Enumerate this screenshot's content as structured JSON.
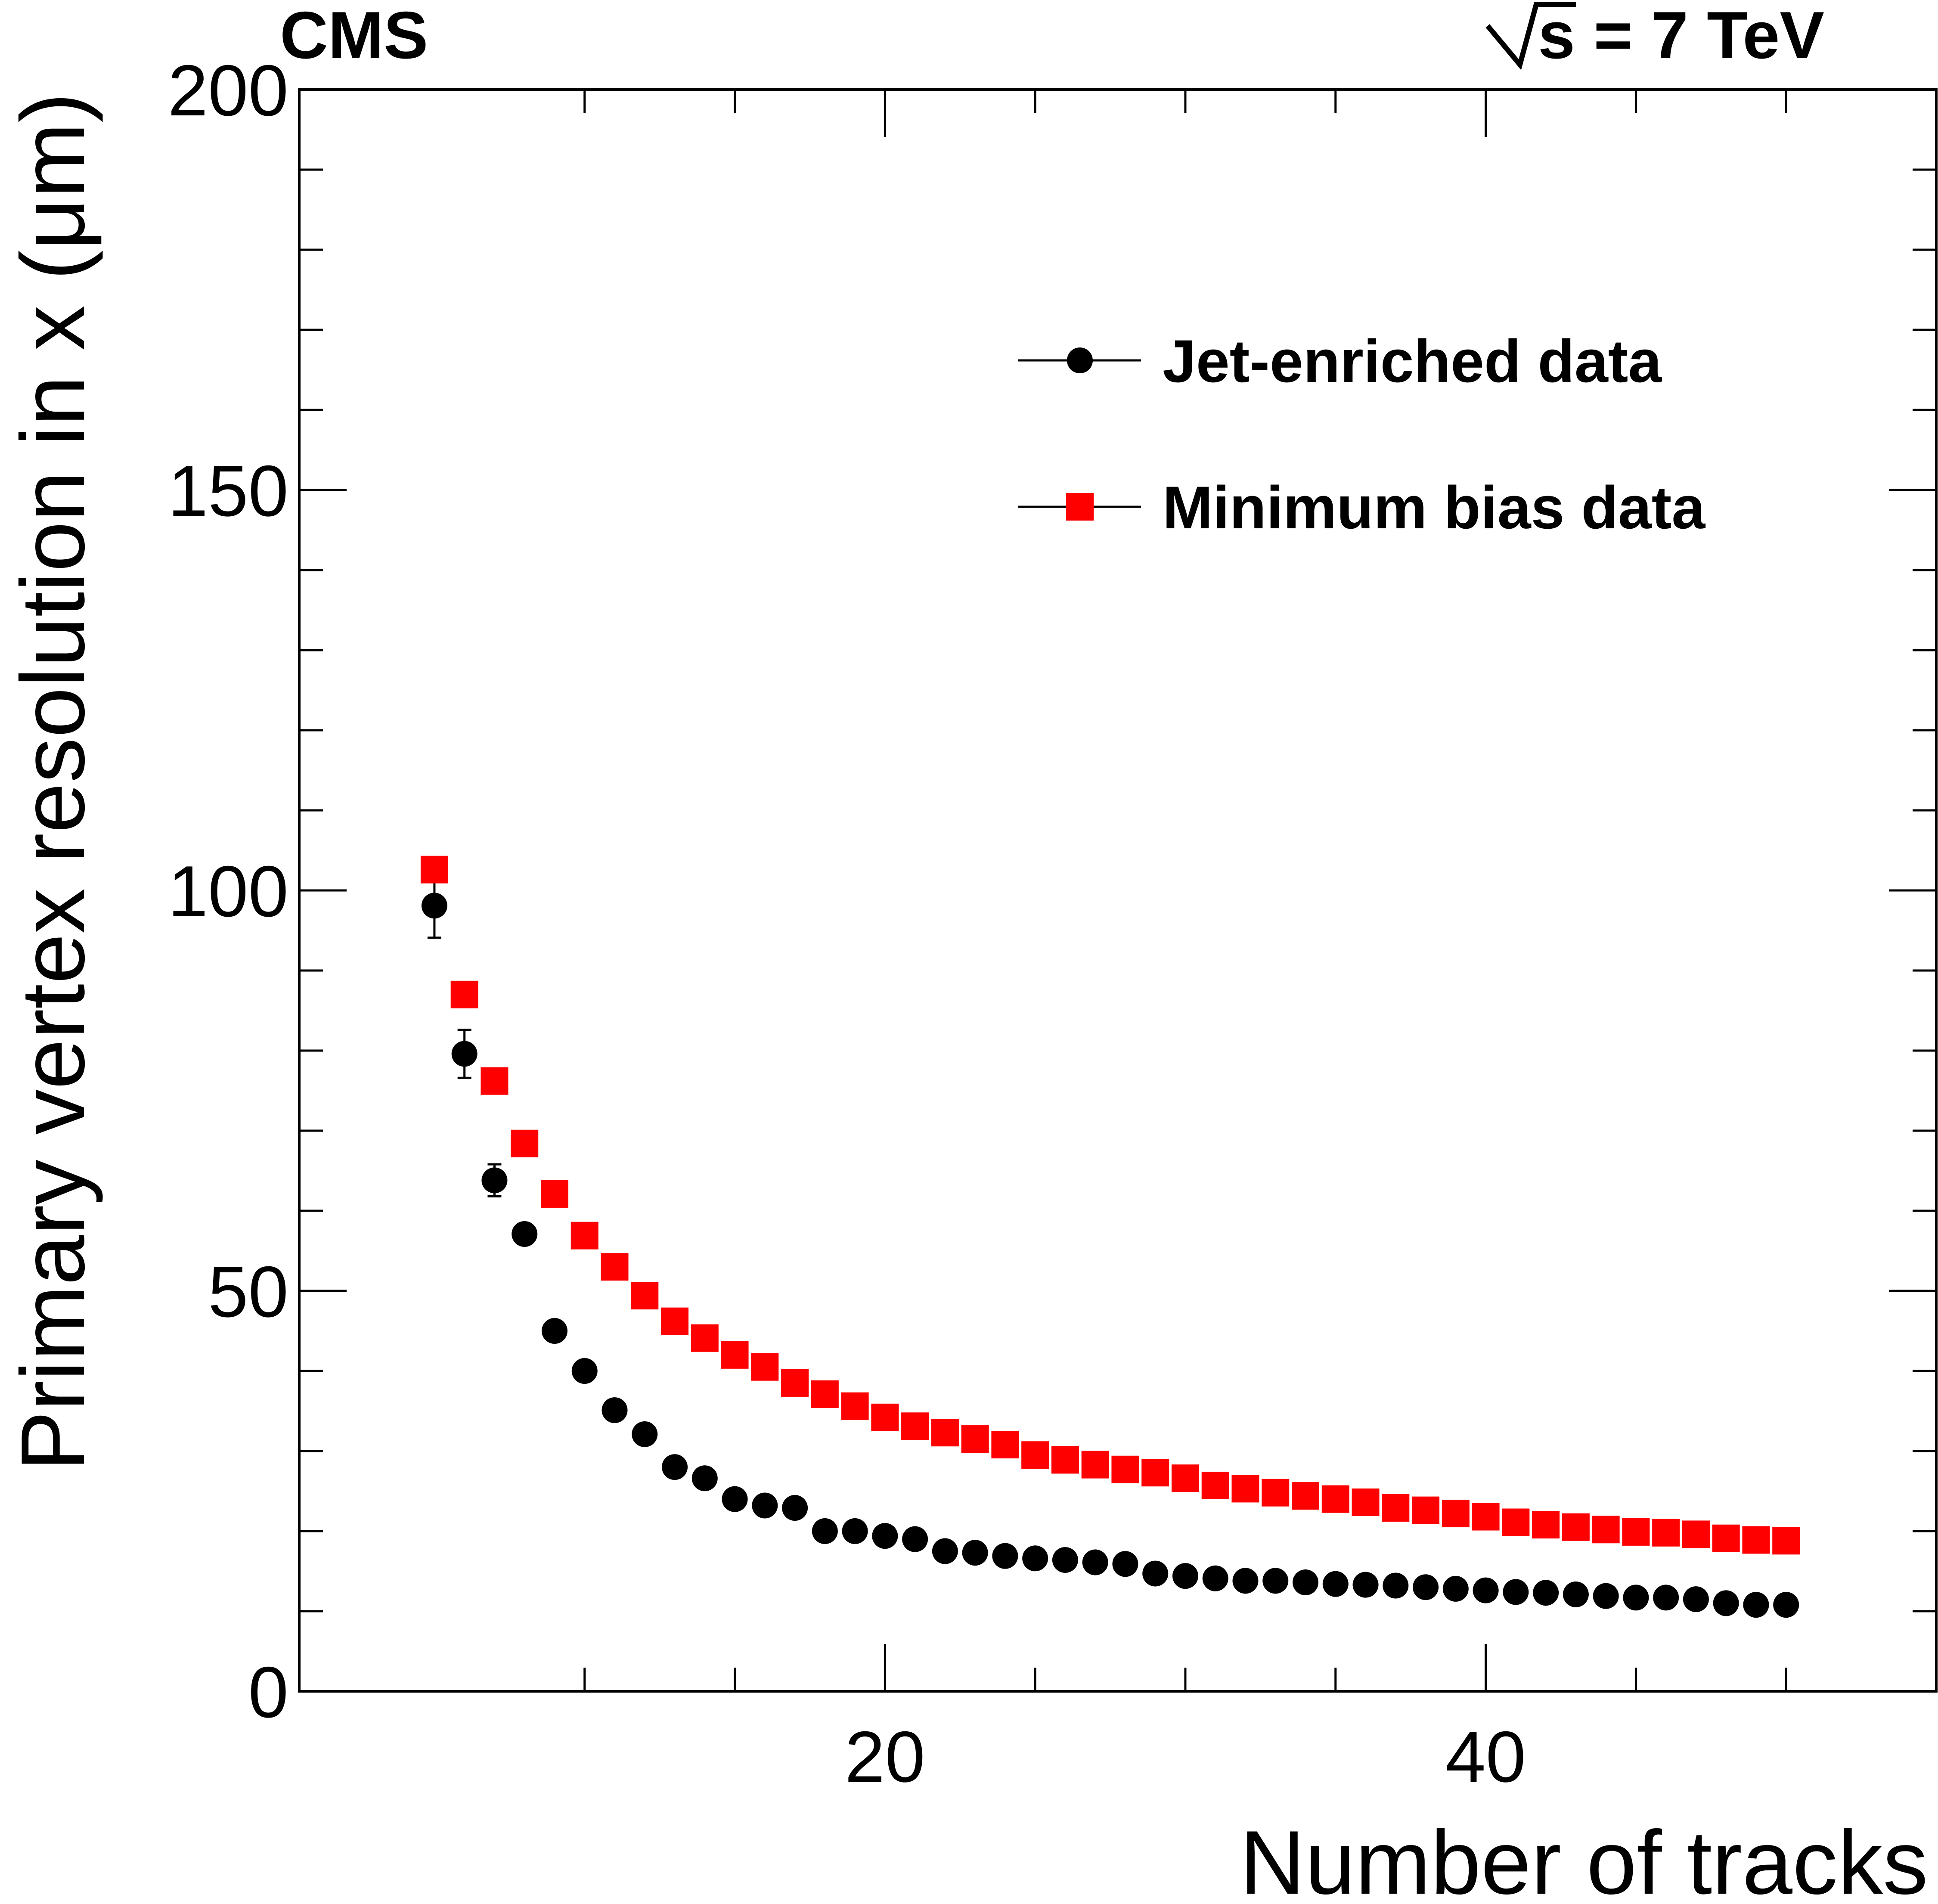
{
  "chart_data": {
    "type": "scatter",
    "experiment_label": "CMS",
    "energy_label": "s = 7 TeV",
    "xlabel": "Number of tracks",
    "ylabel": "Primary vertex resolution in x (μm)",
    "xlim": [
      0.5,
      55
    ],
    "ylim": [
      0,
      200
    ],
    "x_ticks": [
      20,
      40
    ],
    "y_ticks": [
      0,
      50,
      100,
      150,
      200
    ],
    "legend_position": "top-right",
    "series": [
      {
        "name": "Jet-enriched data",
        "marker": "circle",
        "color": "#000000",
        "x": [
          5,
          6,
          7,
          8,
          9,
          10,
          11,
          12,
          13,
          14,
          15,
          16,
          17,
          18,
          19,
          20,
          21,
          22,
          23,
          24,
          25,
          26,
          27,
          28,
          29,
          30,
          31,
          32,
          33,
          34,
          35,
          36,
          37,
          38,
          39,
          40,
          41,
          42,
          43,
          44,
          45,
          46,
          47,
          48,
          49,
          50
        ],
        "y": [
          98.1,
          79.6,
          63.8,
          57.1,
          45.0,
          40.0,
          35.1,
          32.1,
          28.0,
          26.6,
          24.0,
          23.2,
          22.9,
          20.0,
          20.0,
          19.4,
          19.0,
          17.5,
          17.3,
          16.9,
          16.6,
          16.4,
          16.1,
          15.9,
          14.7,
          14.4,
          14.1,
          13.8,
          13.8,
          13.6,
          13.4,
          13.3,
          13.2,
          13.0,
          12.8,
          12.6,
          12.4,
          12.3,
          12.1,
          11.9,
          11.7,
          11.7,
          11.5,
          11.0,
          10.8,
          10.8
        ],
        "y_err": [
          4.0,
          3.0,
          2.0,
          1.2,
          0.8,
          0.5,
          0.4,
          0.3,
          0.3,
          0.3,
          0.3,
          0.2,
          0.2,
          0.2,
          0.2,
          0.2,
          0.2,
          0.2,
          0.2,
          0.2,
          0.2,
          0.2,
          0.2,
          0.2,
          0.2,
          0.2,
          0.2,
          0.2,
          0.2,
          0.2,
          0.2,
          0.2,
          0.2,
          0.2,
          0.2,
          0.2,
          0.2,
          0.2,
          0.2,
          0.2,
          0.2,
          0.2,
          0.2,
          0.2,
          0.2,
          0.2
        ]
      },
      {
        "name": "Minimum bias data",
        "marker": "square",
        "color": "#ff0000",
        "x": [
          5,
          6,
          7,
          8,
          9,
          10,
          11,
          12,
          13,
          14,
          15,
          16,
          17,
          18,
          19,
          20,
          21,
          22,
          23,
          24,
          25,
          26,
          27,
          28,
          29,
          30,
          31,
          32,
          33,
          34,
          35,
          36,
          37,
          38,
          39,
          40,
          41,
          42,
          43,
          44,
          45,
          46,
          47,
          48,
          49,
          50
        ],
        "y": [
          102.6,
          87.0,
          76.2,
          68.4,
          62.1,
          56.9,
          53.0,
          49.4,
          46.2,
          44.1,
          42.0,
          40.5,
          38.5,
          37.1,
          35.6,
          34.2,
          33.1,
          32.3,
          31.5,
          30.8,
          29.5,
          28.9,
          28.3,
          27.7,
          27.3,
          26.6,
          25.7,
          25.3,
          24.8,
          24.4,
          24.0,
          23.6,
          22.9,
          22.6,
          22.2,
          21.8,
          21.1,
          20.8,
          20.5,
          20.2,
          19.9,
          19.8,
          19.6,
          19.1,
          18.9,
          18.8
        ],
        "y_err": [
          0.3,
          0.3,
          0.2,
          0.2,
          0.2,
          0.2,
          0.2,
          0.2,
          0.2,
          0.2,
          0.2,
          0.2,
          0.2,
          0.2,
          0.2,
          0.2,
          0.2,
          0.2,
          0.2,
          0.2,
          0.2,
          0.2,
          0.2,
          0.2,
          0.2,
          0.2,
          0.2,
          0.2,
          0.2,
          0.2,
          0.2,
          0.2,
          0.2,
          0.2,
          0.2,
          0.2,
          0.2,
          0.2,
          0.2,
          0.2,
          0.2,
          0.2,
          0.2,
          0.2,
          0.2,
          0.2
        ]
      }
    ]
  }
}
